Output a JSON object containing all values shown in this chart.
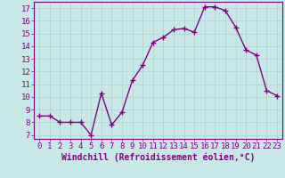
{
  "x": [
    0,
    1,
    2,
    3,
    4,
    5,
    6,
    7,
    8,
    9,
    10,
    11,
    12,
    13,
    14,
    15,
    16,
    17,
    18,
    19,
    20,
    21,
    22,
    23
  ],
  "y": [
    8.5,
    8.5,
    8.0,
    8.0,
    8.0,
    7.0,
    10.3,
    7.8,
    8.8,
    11.3,
    12.5,
    14.3,
    14.7,
    15.3,
    15.4,
    15.1,
    17.1,
    17.1,
    16.8,
    15.5,
    13.7,
    13.3,
    10.5,
    10.1
  ],
  "line_color": "#800080",
  "marker": "+",
  "marker_size": 4,
  "line_width": 1.0,
  "bg_color": "#c8e8e8",
  "grid_color": "#b0d0d0",
  "xlabel": "Windchill (Refroidissement éolien,°C)",
  "xlabel_color": "#800080",
  "xlabel_fontsize": 7,
  "yticks": [
    7,
    8,
    9,
    10,
    11,
    12,
    13,
    14,
    15,
    16,
    17
  ],
  "xticks": [
    0,
    1,
    2,
    3,
    4,
    5,
    6,
    7,
    8,
    9,
    10,
    11,
    12,
    13,
    14,
    15,
    16,
    17,
    18,
    19,
    20,
    21,
    22,
    23
  ],
  "ylim": [
    6.7,
    17.5
  ],
  "xlim": [
    -0.5,
    23.5
  ],
  "tick_fontsize": 6.5,
  "tick_color": "#800080",
  "spine_color": "#800080"
}
